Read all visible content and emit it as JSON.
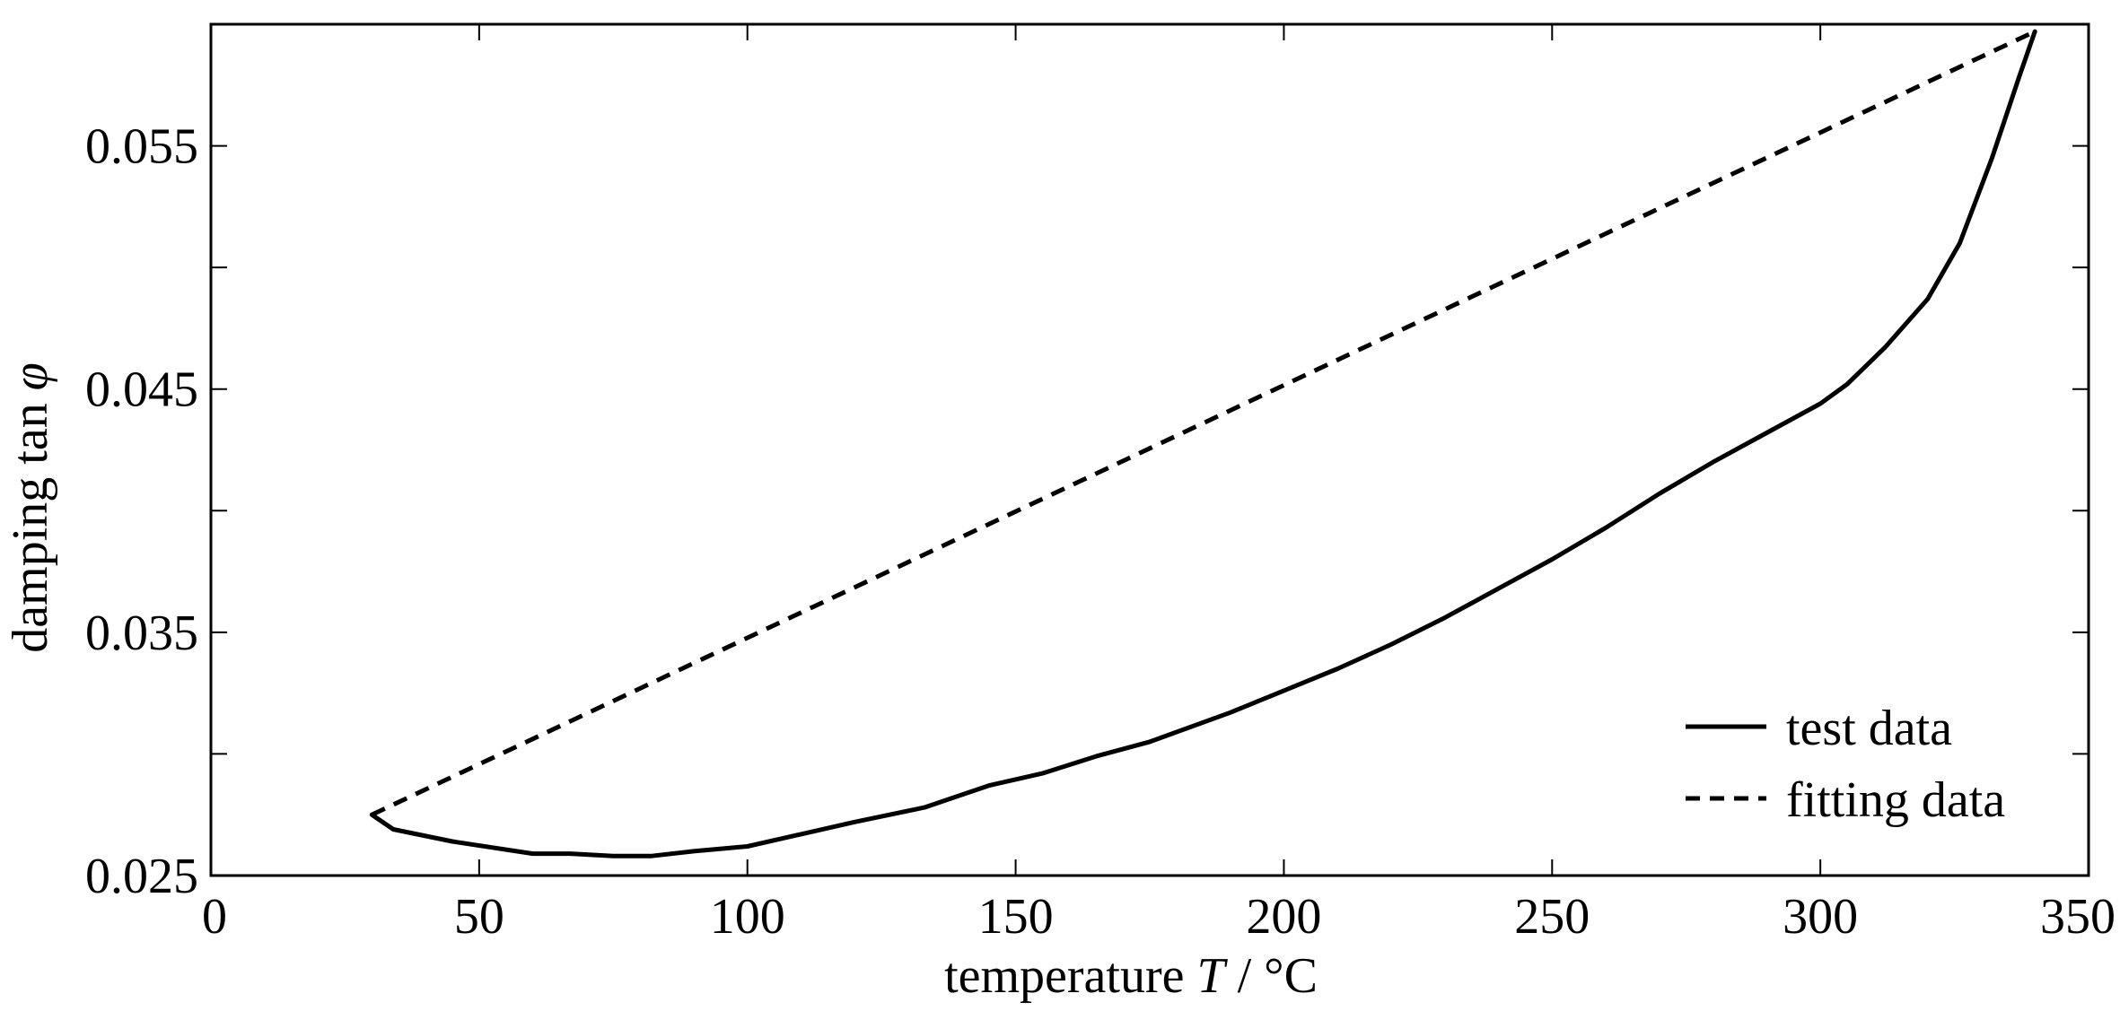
{
  "chart_data": {
    "type": "line",
    "title": "",
    "xlabel_prefix": "temperature ",
    "xlabel_var": "T",
    "xlabel_suffix": " / °C",
    "ylabel_prefix": "damping tan ",
    "ylabel_var": "φ",
    "xlim": [
      0,
      350
    ],
    "ylim": [
      0.025,
      0.06
    ],
    "x_ticks": [
      0,
      50,
      100,
      150,
      200,
      250,
      300,
      350
    ],
    "x_tick_labels": [
      "0",
      "50",
      "100",
      "150",
      "200",
      "250",
      "300",
      "350"
    ],
    "y_ticks": [
      0.025,
      0.03,
      0.035,
      0.04,
      0.045,
      0.05,
      0.055
    ],
    "y_tick_labels": [
      "0.025",
      "",
      "0.035",
      "",
      "0.045",
      "",
      "0.055"
    ],
    "grid": false,
    "legend_position": "bottom-right",
    "series": [
      {
        "name": "test data",
        "style": "solid",
        "color": "#000000",
        "x": [
          30,
          34,
          45,
          60,
          67,
          75,
          82,
          90,
          100,
          110,
          120,
          133,
          145,
          155,
          165,
          175,
          190,
          200,
          210,
          220,
          230,
          240,
          250,
          260,
          270,
          280,
          290,
          300,
          305,
          312,
          320,
          326,
          332,
          337,
          340
        ],
        "y": [
          0.0275,
          0.0269,
          0.0264,
          0.0259,
          0.0259,
          0.0258,
          0.0258,
          0.026,
          0.0262,
          0.0267,
          0.0272,
          0.0278,
          0.0287,
          0.0292,
          0.0299,
          0.0305,
          0.0317,
          0.0326,
          0.0335,
          0.0345,
          0.0356,
          0.0368,
          0.038,
          0.0393,
          0.0407,
          0.042,
          0.0432,
          0.0444,
          0.0452,
          0.0467,
          0.0487,
          0.051,
          0.0545,
          0.0578,
          0.0597
        ]
      },
      {
        "name": "fitting data",
        "style": "dashed",
        "color": "#000000",
        "x": [
          30,
          340
        ],
        "y": [
          0.0275,
          0.0597
        ]
      }
    ]
  }
}
